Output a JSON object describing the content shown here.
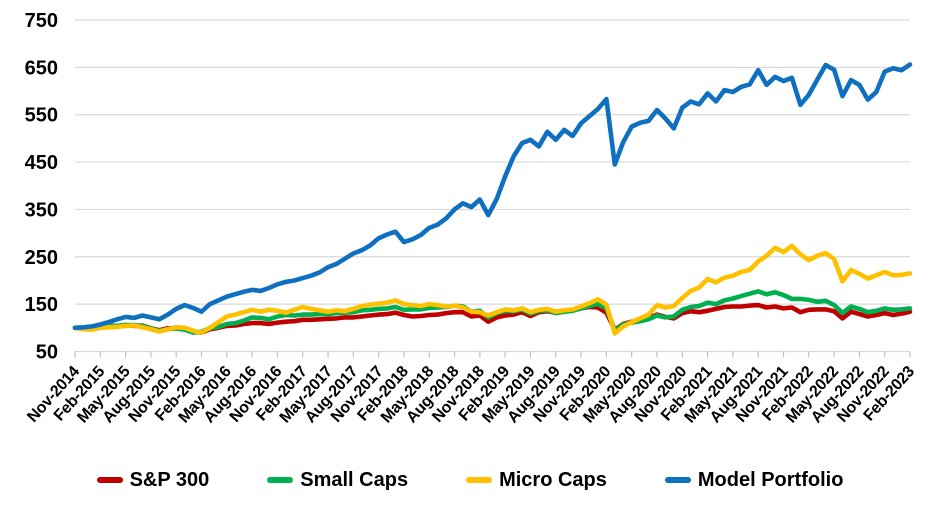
{
  "chart_data": {
    "type": "line",
    "title": "",
    "xlabel": "",
    "ylabel": "",
    "grid": "horizontal",
    "legend_position": "bottom",
    "x_unit": "monthly points, labels every 3 months",
    "x_tick_labels": [
      "Nov-2014",
      "Feb-2015",
      "May-2015",
      "Aug-2015",
      "Nov-2015",
      "Feb-2016",
      "May-2016",
      "Aug-2016",
      "Nov-2016",
      "Feb-2017",
      "May-2017",
      "Aug-2017",
      "Nov-2017",
      "Feb-2018",
      "May-2018",
      "Aug-2018",
      "Nov-2018",
      "Feb-2019",
      "May-2019",
      "Aug-2019",
      "Nov-2019",
      "Feb-2020",
      "May-2020",
      "Aug-2020",
      "Nov-2020",
      "Feb-2021",
      "May-2021",
      "Aug-2021",
      "Nov-2021",
      "Feb-2022",
      "May-2022",
      "Aug-2022",
      "Nov-2022",
      "Feb-2023"
    ],
    "y_axis": {
      "min": 50,
      "max": 750,
      "step": 100,
      "tick_labels": [
        "50",
        "150",
        "250",
        "350",
        "450",
        "550",
        "650",
        "750"
      ]
    },
    "series": [
      {
        "name": "S&P 300",
        "color": "#C00000",
        "values": [
          100,
          99,
          101,
          104,
          103,
          104,
          106,
          104,
          105,
          99,
          95,
          99,
          99,
          97,
          92,
          90,
          97,
          100,
          104,
          105,
          108,
          110,
          110,
          108,
          111,
          113,
          114,
          117,
          117,
          118,
          119,
          120,
          122,
          122,
          124,
          126,
          128,
          129,
          132,
          127,
          124,
          125,
          127,
          128,
          131,
          133,
          133,
          124,
          126,
          113,
          122,
          126,
          128,
          133,
          125,
          133,
          135,
          132,
          134,
          137,
          141,
          144,
          143,
          132,
          96,
          108,
          113,
          115,
          121,
          128,
          123,
          120,
          131,
          135,
          133,
          136,
          140,
          144,
          145,
          145,
          147,
          148,
          143,
          145,
          141,
          143,
          133,
          138,
          139,
          139,
          135,
          120,
          134,
          129,
          124,
          127,
          131,
          127,
          130,
          134
        ]
      },
      {
        "name": "Small Caps",
        "color": "#00B050",
        "values": [
          100,
          99,
          100,
          104,
          105,
          104,
          106,
          106,
          104,
          99,
          94,
          97,
          99,
          96,
          90,
          92,
          99,
          102,
          108,
          110,
          115,
          122,
          121,
          118,
          124,
          127,
          126,
          128,
          128,
          129,
          129,
          131,
          132,
          133,
          137,
          138,
          140,
          141,
          144,
          138,
          139,
          139,
          142,
          143,
          144,
          147,
          145,
          134,
          136,
          122,
          131,
          136,
          135,
          139,
          130,
          136,
          137,
          131,
          134,
          136,
          141,
          146,
          150,
          141,
          95,
          107,
          111,
          114,
          118,
          126,
          122,
          124,
          138,
          144,
          146,
          153,
          150,
          158,
          162,
          167,
          172,
          177,
          171,
          175,
          169,
          161,
          161,
          159,
          155,
          157,
          148,
          131,
          145,
          140,
          133,
          136,
          141,
          138,
          139,
          141
        ]
      },
      {
        "name": "Micro Caps",
        "color": "#FFC000",
        "values": [
          100,
          97,
          96,
          100,
          101,
          102,
          104,
          105,
          101,
          97,
          92,
          97,
          101,
          100,
          94,
          90,
          100,
          112,
          124,
          128,
          133,
          138,
          134,
          138,
          136,
          132,
          138,
          144,
          140,
          137,
          134,
          137,
          135,
          140,
          146,
          149,
          151,
          153,
          158,
          150,
          148,
          146,
          150,
          148,
          145,
          147,
          143,
          134,
          133,
          126,
          133,
          139,
          137,
          141,
          133,
          138,
          140,
          134,
          137,
          139,
          145,
          152,
          160,
          149,
          88,
          103,
          112,
          120,
          128,
          148,
          143,
          146,
          163,
          178,
          185,
          203,
          196,
          206,
          210,
          218,
          222,
          240,
          252,
          269,
          260,
          273,
          255,
          243,
          252,
          258,
          245,
          198,
          222,
          214,
          204,
          211,
          218,
          211,
          212,
          215
        ]
      },
      {
        "name": "Model Portfolio",
        "color": "#0F70C0",
        "values": [
          100,
          101,
          103,
          107,
          112,
          118,
          123,
          121,
          126,
          122,
          118,
          128,
          140,
          148,
          142,
          134,
          150,
          158,
          166,
          171,
          176,
          180,
          178,
          184,
          192,
          197,
          200,
          205,
          210,
          217,
          228,
          235,
          246,
          257,
          264,
          274,
          289,
          297,
          303,
          281,
          287,
          296,
          311,
          318,
          331,
          350,
          363,
          355,
          371,
          338,
          372,
          420,
          462,
          490,
          497,
          483,
          514,
          497,
          518,
          505,
          532,
          547,
          562,
          583,
          445,
          492,
          525,
          533,
          537,
          560,
          542,
          521,
          565,
          578,
          572,
          595,
          578,
          602,
          598,
          609,
          614,
          644,
          613,
          630,
          621,
          628,
          571,
          592,
          624,
          655,
          645,
          589,
          623,
          613,
          582,
          598,
          641,
          648,
          644,
          656
        ]
      }
    ]
  },
  "legend": {
    "items": [
      {
        "label": "S&P 300",
        "color": "#C00000"
      },
      {
        "label": "Small Caps",
        "color": "#00B050"
      },
      {
        "label": "Micro Caps",
        "color": "#FFC000"
      },
      {
        "label": "Model Portfolio",
        "color": "#0F70C0"
      }
    ]
  },
  "style": {
    "gridline_color": "#D9D9D9",
    "axis_color": "#D9D9D9",
    "tick_color": "#BFBFBF"
  }
}
